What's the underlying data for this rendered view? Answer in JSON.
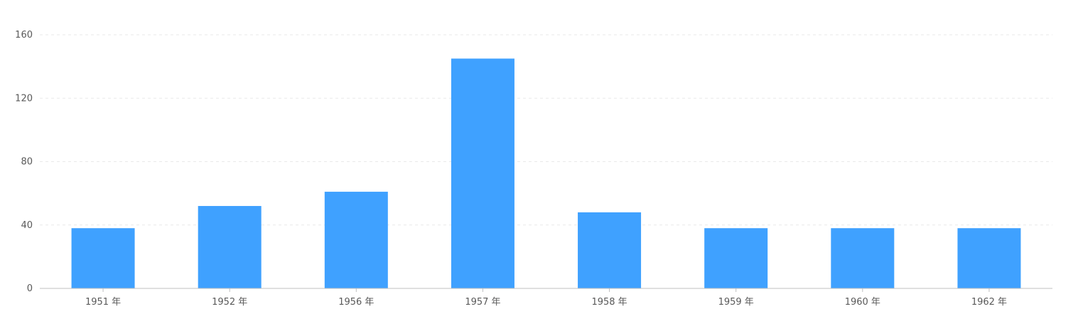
{
  "chart_data": {
    "type": "bar",
    "categories": [
      "1951 年",
      "1952 年",
      "1956 年",
      "1957 年",
      "1958 年",
      "1959 年",
      "1960 年",
      "1962 年"
    ],
    "values": [
      38,
      52,
      61,
      145,
      48,
      38,
      38,
      38
    ],
    "title": "",
    "xlabel": "",
    "ylabel": "",
    "ylim": [
      0,
      160
    ],
    "yticks": [
      "0",
      "40",
      "80",
      "120",
      "160"
    ],
    "grid": true,
    "grid_style": "dashed",
    "bar_color": "#3fa1ff",
    "gridline_color": "#e9e9e9",
    "axis_line_color": "#bfbfbf"
  }
}
